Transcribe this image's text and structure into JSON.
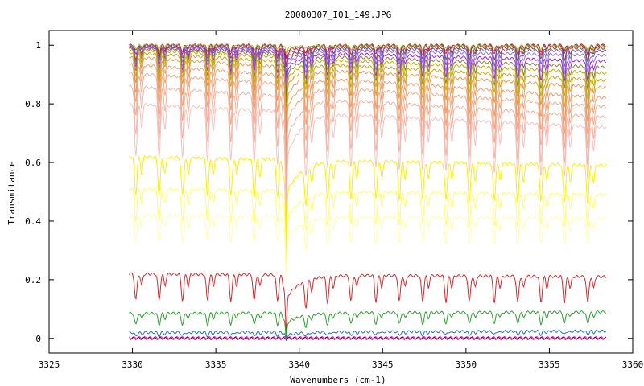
{
  "chart_data": {
    "type": "line",
    "title": "20080307_I01_149.JPG",
    "xlabel": "Wavenumbers (cm-1)",
    "ylabel": "Transmitance",
    "xlim": [
      3325,
      3360
    ],
    "ylim": [
      -0.05,
      1.05
    ],
    "xticks": [
      3325,
      3330,
      3335,
      3340,
      3345,
      3350,
      3355,
      3360
    ],
    "xtick_labels": [
      "3325",
      "3330",
      "3335",
      "3340",
      "3345",
      "3350",
      "3355",
      "3360"
    ],
    "yticks": [
      0,
      0.2,
      0.4,
      0.6,
      0.8,
      1
    ],
    "ytick_labels": [
      "0",
      "0.2",
      "0.4",
      "0.6",
      "0.8",
      "1"
    ],
    "grid": false,
    "legend": "none",
    "x_range": [
      3329.8,
      3358.4
    ],
    "line_spacing_cm1": 1.42,
    "line_centers": [
      3330.2,
      3331.6,
      3333.0,
      3334.5,
      3335.9,
      3337.3,
      3338.7,
      3340.4,
      3341.7,
      3343.1,
      3344.6,
      3346.0,
      3347.4,
      3348.8,
      3350.2,
      3351.7,
      3353.1,
      3354.5,
      3355.9,
      3357.3
    ],
    "series": [
      {
        "color": "#b22222",
        "baseline_start": 1.0,
        "baseline_end": 1.0,
        "depth": 0.02
      },
      {
        "color": "#c71585",
        "baseline_start": 0.998,
        "baseline_end": 0.998,
        "depth": 0.03
      },
      {
        "color": "#9acd32",
        "baseline_start": 1.0,
        "baseline_end": 0.995,
        "depth": 0.01
      },
      {
        "color": "#8b4513",
        "baseline_start": 0.995,
        "baseline_end": 0.99,
        "depth": 0.04
      },
      {
        "color": "#6a5acd",
        "baseline_start": 0.995,
        "baseline_end": 0.98,
        "depth": 0.05
      },
      {
        "color": "#9370db",
        "baseline_start": 0.995,
        "baseline_end": 0.965,
        "depth": 0.06
      },
      {
        "color": "#a020f0",
        "baseline_start": 0.993,
        "baseline_end": 0.945,
        "depth": 0.07
      },
      {
        "color": "#8b7d3a",
        "baseline_start": 0.99,
        "baseline_end": 0.925,
        "depth": 0.08
      },
      {
        "color": "#bdb200",
        "baseline_start": 0.985,
        "baseline_end": 0.905,
        "depth": 0.09
      },
      {
        "color": "#d4a017",
        "baseline_start": 0.975,
        "baseline_end": 0.88,
        "depth": 0.1
      },
      {
        "color": "#e89a5a",
        "baseline_start": 0.96,
        "baseline_end": 0.855,
        "depth": 0.12
      },
      {
        "color": "#f0a070",
        "baseline_start": 0.935,
        "baseline_end": 0.82,
        "depth": 0.13
      },
      {
        "color": "#f3a98a",
        "baseline_start": 0.905,
        "baseline_end": 0.79,
        "depth": 0.15
      },
      {
        "color": "#f4b09a",
        "baseline_start": 0.86,
        "baseline_end": 0.755,
        "depth": 0.17
      },
      {
        "color": "#f6c0bf",
        "baseline_start": 0.8,
        "baseline_end": 0.72,
        "depth": 0.18
      },
      {
        "color": "#ffee00",
        "baseline_start": 0.62,
        "baseline_end": 0.59,
        "depth": 0.13
      },
      {
        "color": "#ffff66",
        "baseline_start": 0.51,
        "baseline_end": 0.49,
        "depth": 0.11
      },
      {
        "color": "#ffffaa",
        "baseline_start": 0.42,
        "baseline_end": 0.41,
        "depth": 0.09
      },
      {
        "color": "#d62728",
        "baseline_start": 0.22,
        "baseline_end": 0.21,
        "depth": 0.09
      },
      {
        "color": "#2ca02c",
        "baseline_start": 0.085,
        "baseline_end": 0.09,
        "depth": 0.04
      },
      {
        "color": "#1f77b4",
        "baseline_start": 0.02,
        "baseline_end": 0.025,
        "depth": 0.012
      },
      {
        "color": "#ff00ff",
        "baseline_start": 0.002,
        "baseline_end": 0.002,
        "depth": 0.0
      },
      {
        "color": "#8b0000",
        "baseline_start": 0.0,
        "baseline_end": 0.0,
        "depth": 0.0
      }
    ]
  }
}
